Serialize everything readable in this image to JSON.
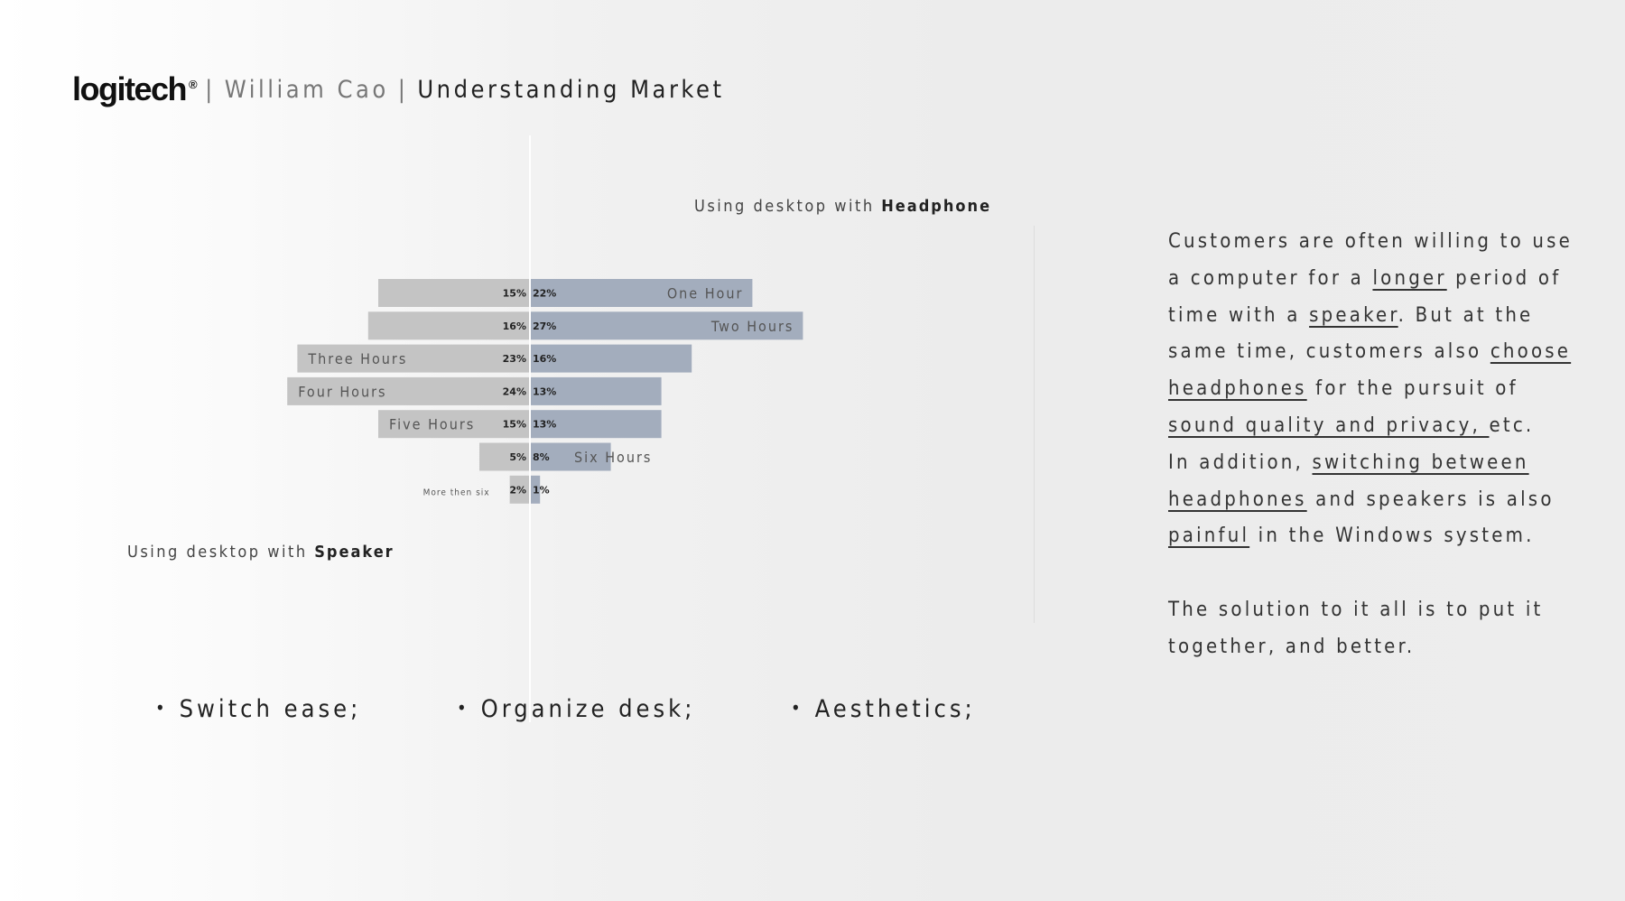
{
  "header": {
    "logo": "logitech",
    "logo_reg": "®",
    "separator": "|",
    "author": "William Cao",
    "section": "Understanding Market"
  },
  "chart_data": {
    "type": "bar",
    "orientation": "horizontal-diverging",
    "categories": [
      "One Hour",
      "Two Hours",
      "Three Hours",
      "Four Hours",
      "Five Hours",
      "Six Hours",
      "More then six"
    ],
    "series": [
      {
        "name": "Speaker",
        "side": "left",
        "values": [
          15,
          16,
          23,
          24,
          15,
          5,
          2
        ],
        "labels": [
          "15%",
          "16%",
          "23%",
          "24%",
          "15%",
          "5%",
          "2%"
        ],
        "color": "#c4c4c4"
      },
      {
        "name": "Headphone",
        "side": "right",
        "values": [
          22,
          27,
          16,
          13,
          13,
          8,
          1
        ],
        "labels": [
          "22%",
          "27%",
          "16%",
          "13%",
          "13%",
          "8%",
          "1%"
        ],
        "color": "#a3adbd"
      }
    ],
    "title_left_prefix": "Using desktop with",
    "title_left_bold": "Speaker",
    "title_right_prefix": "Using desktop with",
    "title_right_bold": "Headphone",
    "unit": "%",
    "legend": "none"
  },
  "bullets": [
    "Switch ease;",
    "Organize desk;",
    "Aesthetics;"
  ],
  "panel": {
    "p1_a": "Customers are often willing to use a computer for a ",
    "p1_u1": "longer",
    "p1_b": " period of time with a ",
    "p1_u2": "speaker",
    "p1_c": ". But at the same time, customers also ",
    "p1_u3": "choose headphones",
    "p1_d": " for the pursuit of ",
    "p1_u4": "sound quality and privacy, ",
    "p1_e": "etc.",
    "p2_a": "In addition, ",
    "p2_u1": "switching between headphones",
    "p2_b": " and speakers is also ",
    "p2_u2": "painful",
    "p2_c": " in the Windows system.",
    "p3": "The solution to it all is to put it together, and better."
  }
}
